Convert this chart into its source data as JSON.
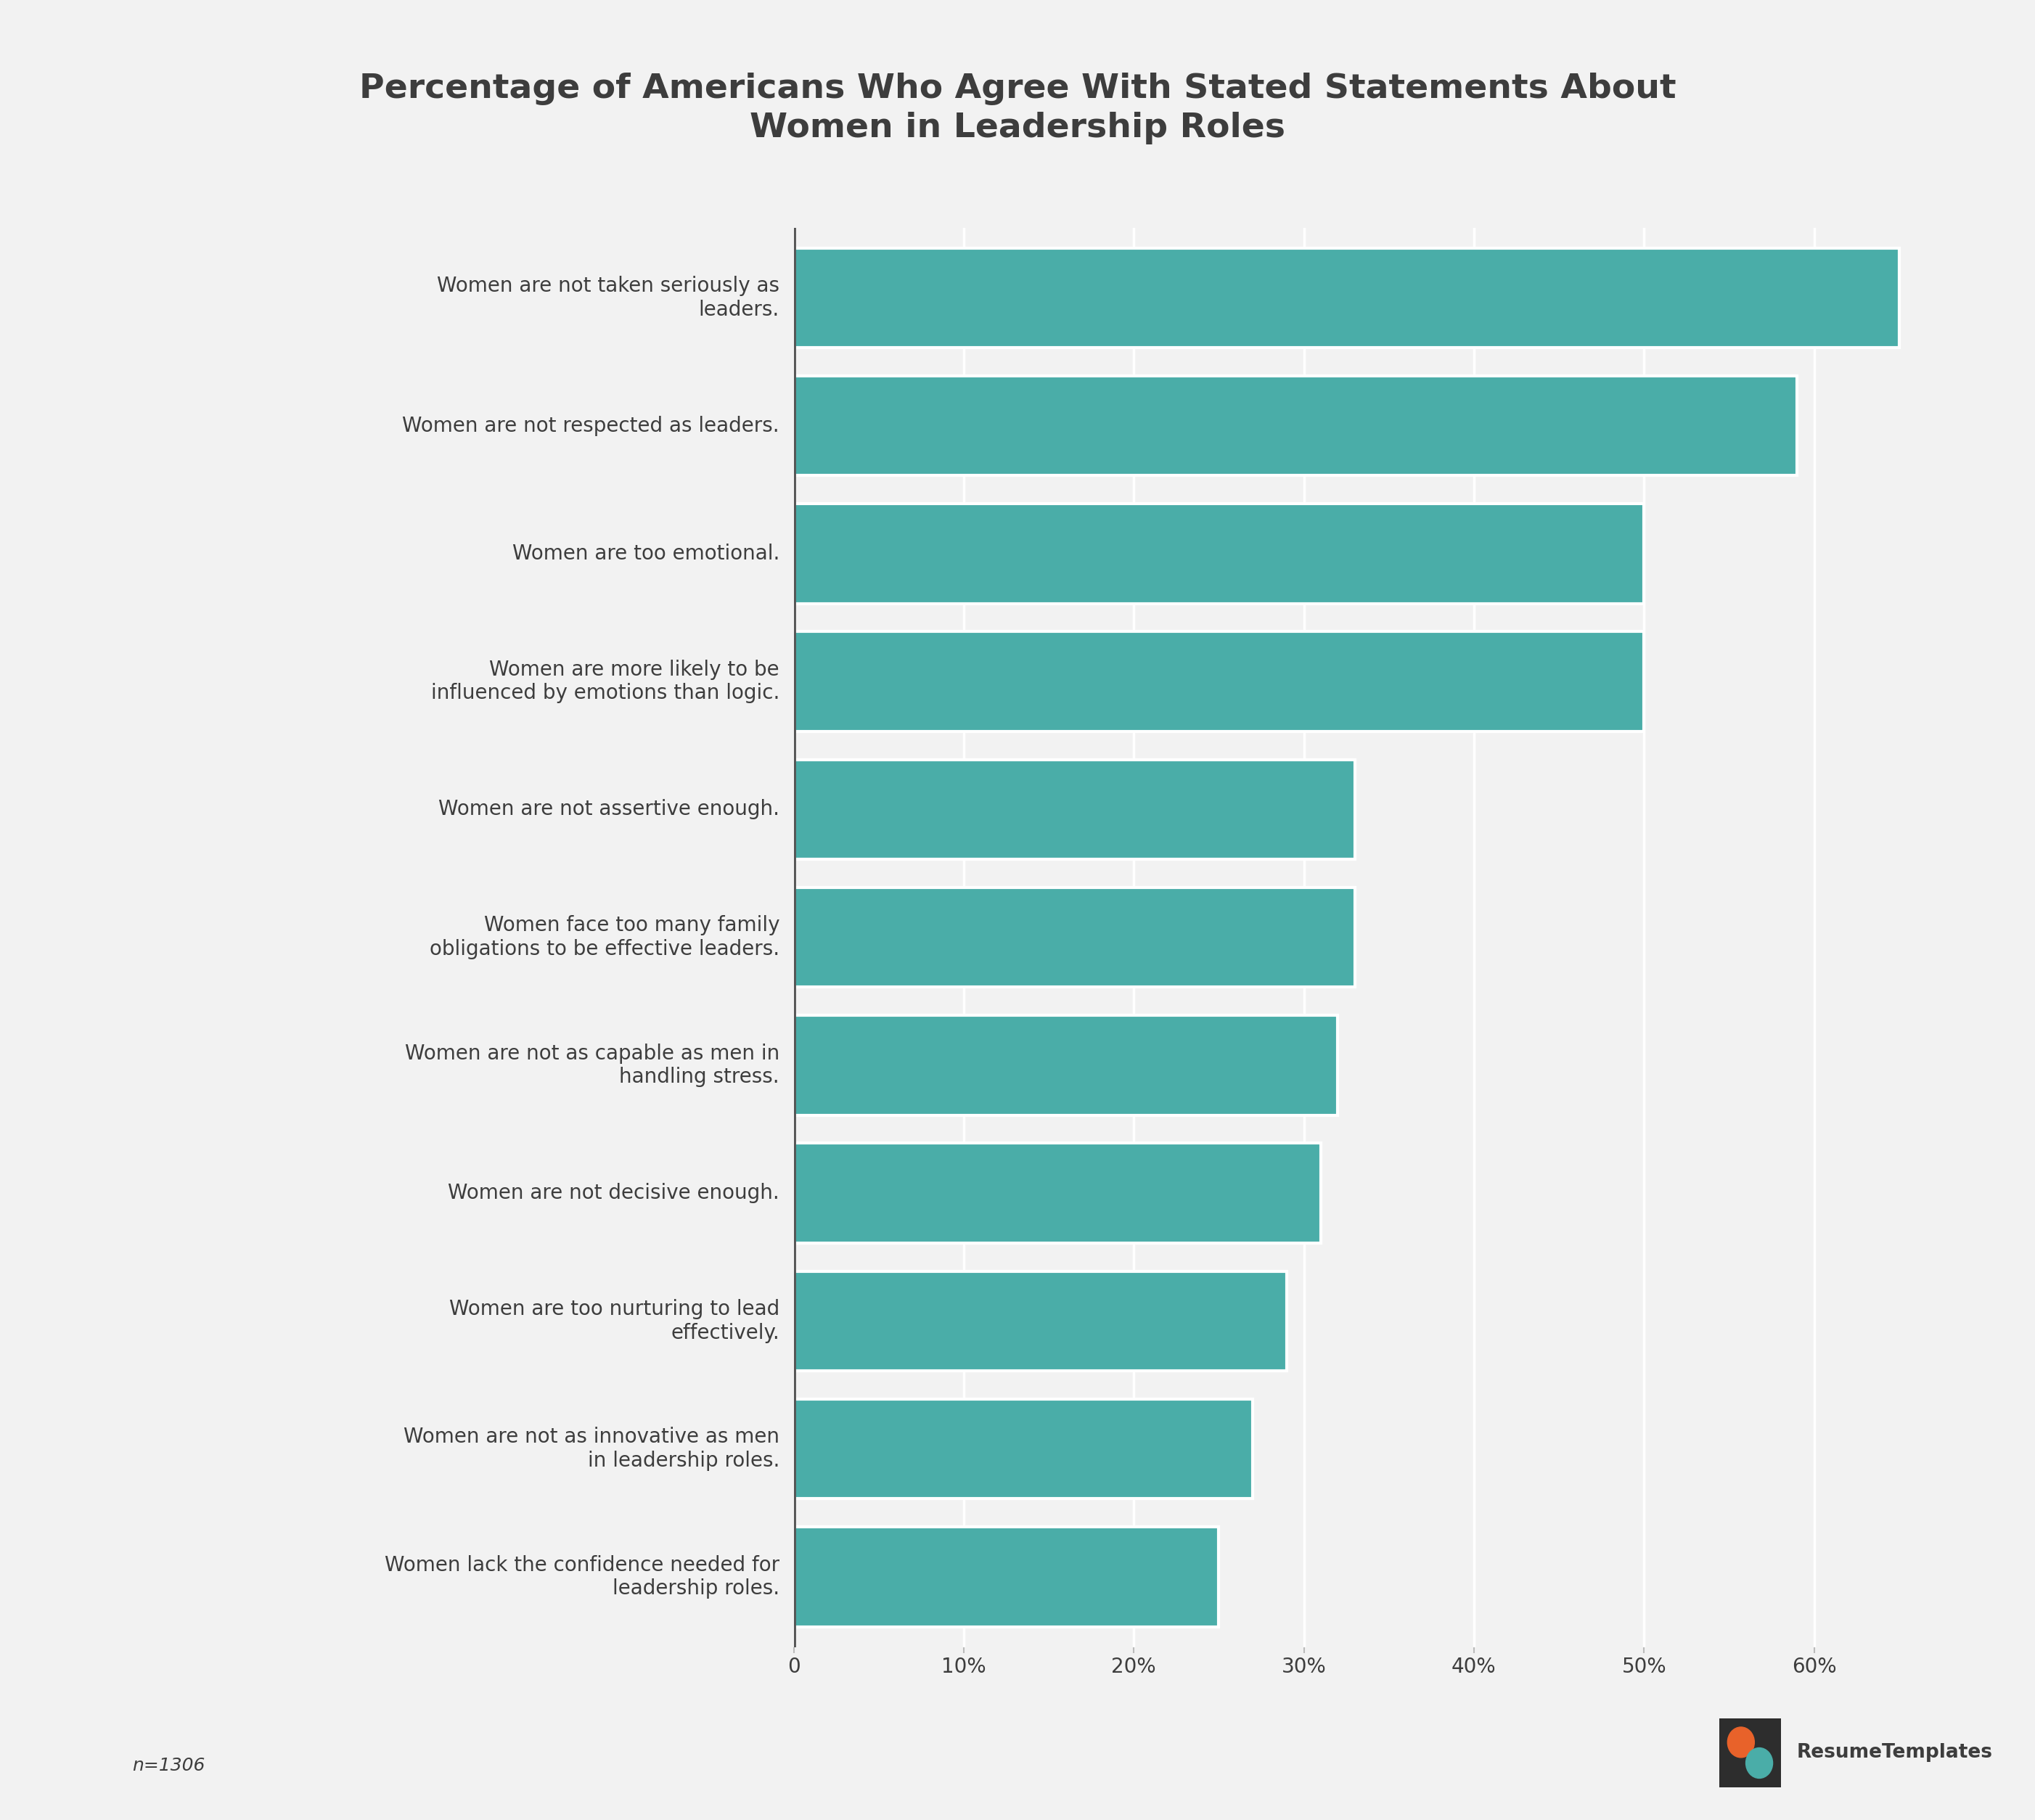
{
  "title": "Percentage of Americans Who Agree With Stated Statements About\nWomen in Leadership Roles",
  "categories": [
    "Women lack the confidence needed for\nleadership roles.",
    "Women are not as innovative as men\nin leadership roles.",
    "Women are too nurturing to lead\neffectively.",
    "Women are not decisive enough.",
    "Women are not as capable as men in\nhandling stress.",
    "Women face too many family\nobligations to be effective leaders.",
    "Women are not assertive enough.",
    "Women are more likely to be\ninfluenced by emotions than logic.",
    "Women are too emotional.",
    "Women are not respected as leaders.",
    "Women are not taken seriously as\nleaders."
  ],
  "values": [
    25,
    27,
    29,
    31,
    32,
    33,
    33,
    50,
    50,
    59,
    65
  ],
  "bar_color": "#4aada8",
  "background_color": "#f2f2f2",
  "text_color": "#3d3d3d",
  "title_fontsize": 34,
  "label_fontsize": 20,
  "tick_fontsize": 20,
  "note": "n=1306",
  "brand": "ResumeTemplates",
  "xlim": [
    0,
    70
  ],
  "xticks": [
    0,
    10,
    20,
    30,
    40,
    50,
    60
  ],
  "xtick_labels": [
    "0",
    "10%",
    "20%",
    "30%",
    "40%",
    "50%",
    "60%"
  ]
}
